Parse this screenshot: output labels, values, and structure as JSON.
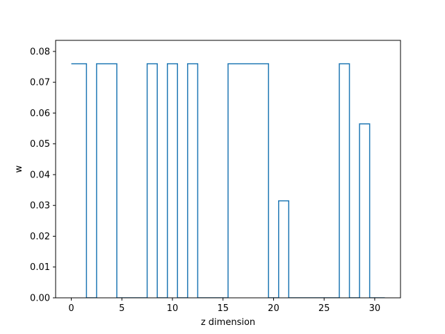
{
  "chart_data": {
    "type": "line",
    "drawstyle": "steps-mid",
    "title": "",
    "xlabel": "z dimension",
    "ylabel": "w",
    "xlim": [
      -1.55,
      32.55
    ],
    "ylim": [
      0,
      0.0836
    ],
    "x_ticks": [
      0,
      5,
      10,
      15,
      20,
      25,
      30
    ],
    "y_ticks": [
      0.0,
      0.01,
      0.02,
      0.03,
      0.04,
      0.05,
      0.06,
      0.07,
      0.08
    ],
    "grid": false,
    "line_color": "#1f77b4",
    "series": [
      {
        "x": [
          0,
          1,
          2,
          3,
          4,
          5,
          6,
          7,
          8,
          9,
          10,
          11,
          12,
          13,
          14,
          15,
          16,
          17,
          18,
          19,
          20,
          21,
          22,
          23,
          24,
          25,
          26,
          27,
          28,
          29,
          30,
          31
        ],
        "values": [
          0.076,
          0.076,
          0,
          0.076,
          0.076,
          0,
          0,
          0,
          0.076,
          0,
          0.076,
          0,
          0.076,
          0,
          0,
          0,
          0.076,
          0.076,
          0.076,
          0.076,
          0,
          0.0315,
          0,
          0,
          0,
          0,
          0,
          0.076,
          0,
          0.0565,
          0,
          0
        ]
      }
    ]
  }
}
